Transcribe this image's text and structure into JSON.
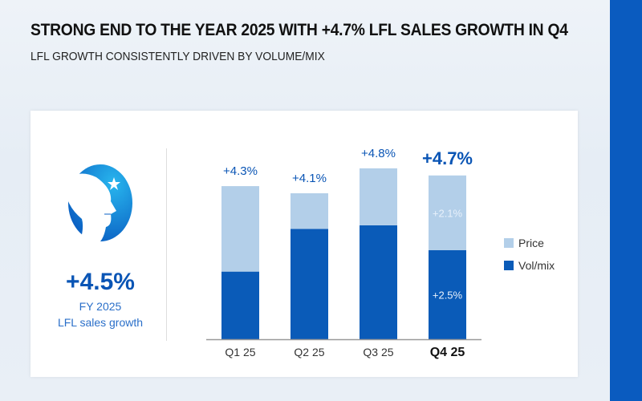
{
  "header": {
    "title": "STRONG END TO THE YEAR 2025 WITH +4.7% LFL SALES GROWTH IN Q4",
    "subtitle": "LFL GROWTH CONSISTENTLY DRIVEN BY VOLUME/MIX"
  },
  "summary": {
    "value": "+4.5%",
    "line1": "FY 2025",
    "line2": "LFL sales growth",
    "logo": "brand-logo-child-profile-with-star"
  },
  "colors": {
    "price": "#b3cfe9",
    "volmix": "#0a5bb8",
    "accent": "#0a55b5",
    "stripe": "#0a5bbf"
  },
  "chart_data": {
    "type": "bar",
    "stacked": true,
    "categories": [
      "Q1 25",
      "Q2 25",
      "Q3 25",
      "Q4 25"
    ],
    "series": [
      {
        "name": "Vol/mix",
        "values": [
          1.9,
          3.1,
          3.2,
          2.5
        ]
      },
      {
        "name": "Price",
        "values": [
          2.4,
          1.0,
          1.6,
          2.1
        ]
      }
    ],
    "totals": [
      "+4.3%",
      "+4.1%",
      "+4.8%",
      "+4.7%"
    ],
    "segment_labels": {
      "Q4 25": {
        "Price": "+2.1%",
        "Vol/mix": "+2.5%"
      }
    },
    "highlight": "Q4 25",
    "legend": {
      "position": "right",
      "entries": [
        "Price",
        "Vol/mix"
      ]
    },
    "ylim": [
      0,
      5.5
    ],
    "grid": false
  }
}
